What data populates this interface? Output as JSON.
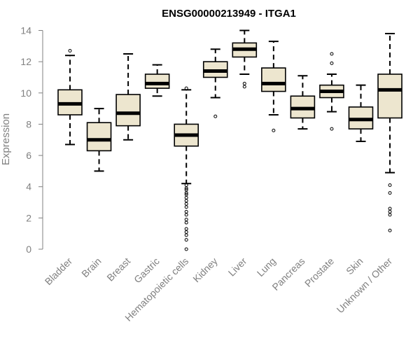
{
  "chart_data": {
    "type": "boxplot",
    "title": "ENSG00000213949 - ITGA1",
    "xlabel": "",
    "ylabel": "Expression",
    "ylim": [
      0,
      14
    ],
    "yticks": [
      0,
      2,
      4,
      6,
      8,
      10,
      12,
      14
    ],
    "grid": false,
    "box_fill": "#ede6cf",
    "stroke_color": "#000000",
    "axis_color": "#808080",
    "categories": [
      "Bladder",
      "Brain",
      "Breast",
      "Gastric",
      "Hematopoietic cells",
      "Kidney",
      "Liver",
      "Lung",
      "Pancreas",
      "Prostate",
      "Skin",
      "Unknown / Other"
    ],
    "boxes": [
      {
        "whisker_low": 6.7,
        "q1": 8.6,
        "median": 9.3,
        "q3": 10.2,
        "whisker_high": 12.4,
        "outliers": [
          12.7
        ]
      },
      {
        "whisker_low": 5.0,
        "q1": 6.3,
        "median": 7.0,
        "q3": 8.1,
        "whisker_high": 9.0,
        "outliers": []
      },
      {
        "whisker_low": 7.0,
        "q1": 7.9,
        "median": 8.7,
        "q3": 9.9,
        "whisker_high": 12.5,
        "outliers": []
      },
      {
        "whisker_low": 9.8,
        "q1": 10.3,
        "median": 10.6,
        "q3": 11.2,
        "whisker_high": 11.8,
        "outliers": []
      },
      {
        "whisker_low": 4.2,
        "q1": 6.6,
        "median": 7.3,
        "q3": 8.0,
        "whisker_high": 10.2,
        "outliers": [
          10.3,
          4.1,
          3.9,
          3.8,
          3.6,
          3.5,
          3.3,
          3.1,
          2.9,
          2.7,
          2.4,
          2.2,
          1.9,
          1.7,
          1.3,
          1.1,
          0.9,
          0.6,
          0.0
        ]
      },
      {
        "whisker_low": 9.7,
        "q1": 11.0,
        "median": 11.4,
        "q3": 12.0,
        "whisker_high": 12.8,
        "outliers": [
          8.5
        ]
      },
      {
        "whisker_low": 11.2,
        "q1": 12.3,
        "median": 12.8,
        "q3": 13.2,
        "whisker_high": 14.0,
        "outliers": [
          10.6,
          10.4
        ]
      },
      {
        "whisker_low": 8.6,
        "q1": 10.1,
        "median": 10.6,
        "q3": 11.6,
        "whisker_high": 13.3,
        "outliers": [
          7.6
        ]
      },
      {
        "whisker_low": 7.7,
        "q1": 8.4,
        "median": 9.0,
        "q3": 9.8,
        "whisker_high": 11.1,
        "outliers": []
      },
      {
        "whisker_low": 8.8,
        "q1": 9.7,
        "median": 10.1,
        "q3": 10.5,
        "whisker_high": 11.2,
        "outliers": [
          12.5,
          11.9,
          7.7
        ]
      },
      {
        "whisker_low": 6.9,
        "q1": 7.7,
        "median": 8.3,
        "q3": 9.1,
        "whisker_high": 10.5,
        "outliers": []
      },
      {
        "whisker_low": 4.9,
        "q1": 8.4,
        "median": 10.2,
        "q3": 11.2,
        "whisker_high": 13.8,
        "outliers": [
          4.1,
          3.6,
          2.6,
          2.4,
          2.2,
          1.2
        ]
      }
    ]
  }
}
